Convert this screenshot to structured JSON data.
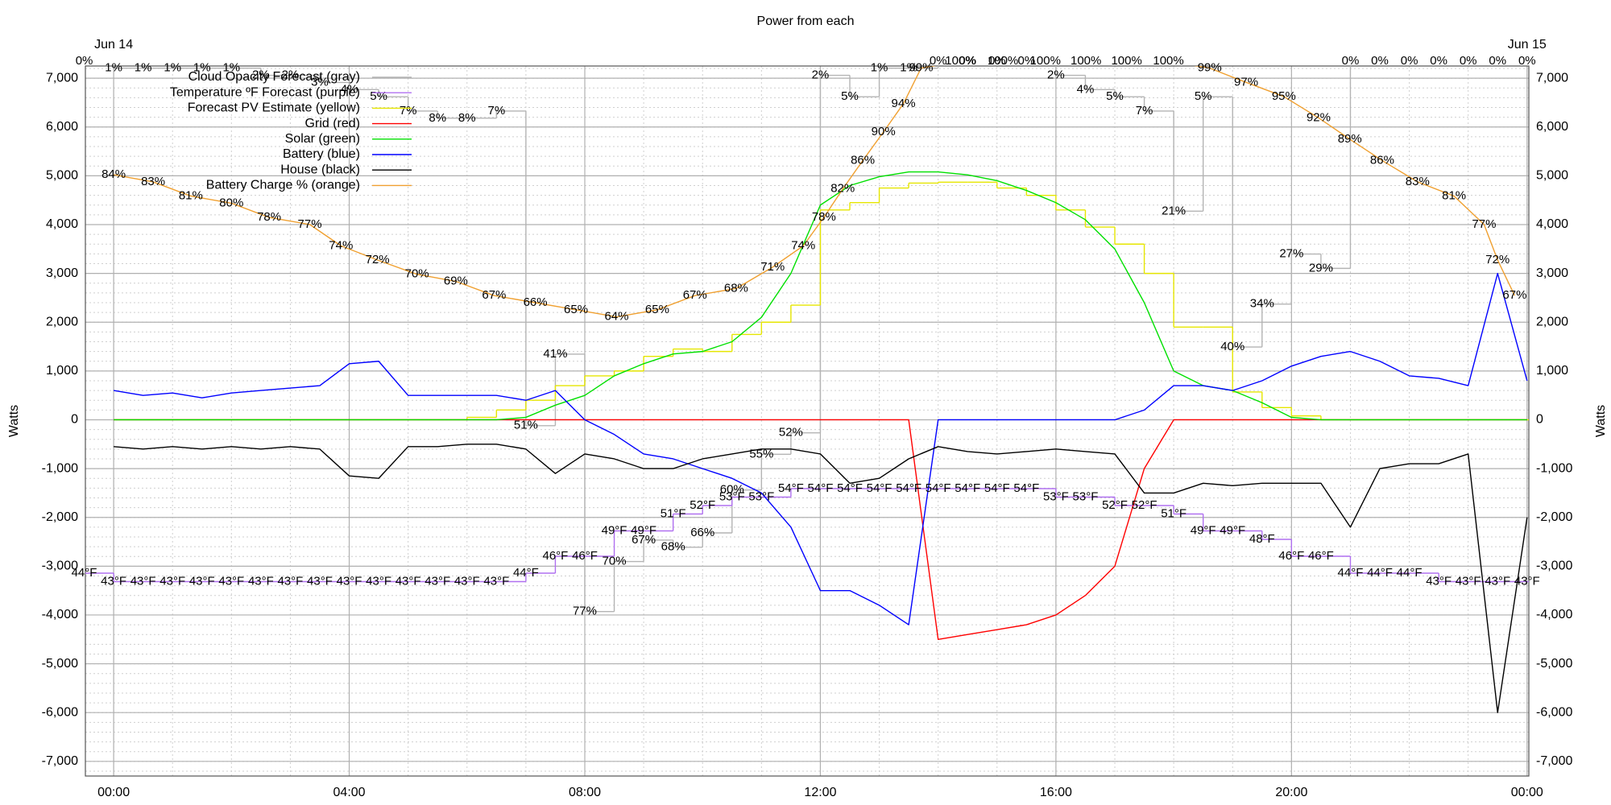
{
  "chart_data": {
    "type": "line",
    "title": "Power from each",
    "ylabel": "Watts",
    "xlim": [
      -0.48,
      24.03
    ],
    "ylim": [
      -7300,
      7250
    ],
    "y2lim": [
      -0.6,
      99.3
    ],
    "y3lim": [
      100,
      0.7
    ],
    "y4lim": [
      20,
      104
    ],
    "grid": true,
    "minor_grid": {
      "x_step": 1,
      "y_step": 200
    },
    "legend": "upper left",
    "xticks": [
      {
        "value": 0,
        "label": "00:00"
      },
      {
        "value": 4,
        "label": "04:00"
      },
      {
        "value": 8,
        "label": "08:00"
      },
      {
        "value": 12,
        "label": "12:00"
      },
      {
        "value": 16,
        "label": "16:00"
      },
      {
        "value": 20,
        "label": "20:00"
      },
      {
        "value": 24,
        "label": "00:00"
      }
    ],
    "date_labels": [
      {
        "value": 0,
        "label": "Jun 14"
      },
      {
        "value": 24,
        "label": "Jun 15"
      }
    ],
    "yticks": [
      {
        "value": -7000,
        "label": "-7,000"
      },
      {
        "value": -6000,
        "label": "-6,000"
      },
      {
        "value": -5000,
        "label": "-5,000"
      },
      {
        "value": -4000,
        "label": "-4,000"
      },
      {
        "value": -3000,
        "label": "-3,000"
      },
      {
        "value": -2000,
        "label": "-2,000"
      },
      {
        "value": -1000,
        "label": "-1,000"
      },
      0,
      {
        "value": 1000,
        "label": "1,000"
      },
      {
        "value": 2000,
        "label": "2,000"
      },
      {
        "value": 3000,
        "label": "3,000"
      },
      {
        "value": 4000,
        "label": "4,000"
      },
      {
        "value": 5000,
        "label": "5,000"
      },
      {
        "value": 6000,
        "label": "6,000"
      },
      {
        "value": 7000,
        "label": "7,000"
      }
    ],
    "x": [
      0,
      0.5,
      1,
      1.5,
      2,
      2.5,
      3,
      3.5,
      4,
      4.5,
      5,
      5.5,
      6,
      6.5,
      7,
      7.5,
      8,
      8.5,
      9,
      9.5,
      10,
      10.5,
      11,
      11.5,
      12,
      12.5,
      13,
      13.5,
      14,
      14.5,
      15,
      15.5,
      16,
      16.5,
      17,
      17.5,
      18,
      18.5,
      19,
      19.5,
      20,
      20.5,
      21,
      21.5,
      22,
      22.5,
      23,
      23.5,
      24
    ],
    "series": [
      {
        "name": "Cloud Opacity Forecast (gray)",
        "color": "#b4b4b4",
        "label_color": "#b4b4b4",
        "axis": "y3",
        "step": true,
        "x": [
          -0.5,
          0,
          0.5,
          1,
          1.5,
          2,
          2.5,
          3,
          3.5,
          4,
          4.5,
          5,
          5.5,
          6,
          6.5,
          7,
          7.5,
          8,
          8.5,
          9,
          9.5,
          10,
          10.5,
          11,
          11.5,
          12,
          12.5,
          13,
          13.5,
          14,
          14.5,
          15,
          15.5,
          16,
          16.5,
          17,
          17.5,
          18,
          18.5,
          19,
          19.5,
          20,
          20.5,
          21,
          21.5,
          22,
          22.5,
          23,
          23.5,
          24
        ],
        "values": [
          0,
          1,
          1,
          1,
          1,
          1,
          2,
          2,
          3,
          4,
          5,
          7,
          8,
          8,
          7,
          51,
          41,
          77,
          70,
          67,
          68,
          66,
          60,
          55,
          52,
          2,
          5,
          1,
          1,
          0,
          0,
          0,
          0,
          2,
          4,
          5,
          7,
          21,
          5,
          40,
          34,
          27,
          29,
          0,
          0,
          0,
          0,
          0,
          0,
          0
        ],
        "value_labels": [
          "0%",
          "1%",
          "1%",
          "1%",
          "1%",
          "1%",
          "2%",
          "2%",
          "3%",
          "4%",
          "5%",
          "7%",
          "8%",
          "8%",
          "7%",
          "51%",
          "41%",
          "77%",
          "70%",
          "67%",
          "68%",
          "66%",
          "60%",
          "55%",
          "52%",
          "2%",
          "5%",
          "1%",
          "1%",
          "0%",
          "0%",
          "0%",
          "0%",
          "2%",
          "4%",
          "5%",
          "7%",
          "21%",
          "5%",
          "40%",
          "34%",
          "27%",
          "29%",
          "0%",
          "0%",
          "0%",
          "0%",
          "0%",
          "0%",
          "0%"
        ]
      },
      {
        "name": "Temperature ºF Forecast (purple)",
        "color": "#b070f0",
        "label_color": "#c080ff",
        "axis": "y4",
        "step": true,
        "x": [
          -0.5,
          0,
          0.5,
          1,
          1.5,
          2,
          2.5,
          3,
          3.5,
          4,
          4.5,
          5,
          5.5,
          6,
          6.5,
          7,
          7.5,
          8,
          8.5,
          9,
          9.5,
          10,
          10.5,
          11,
          11.5,
          12,
          12.5,
          13,
          13.5,
          14,
          14.5,
          15,
          15.5,
          16,
          16.5,
          17,
          17.5,
          18,
          18.5,
          19,
          19.5,
          20,
          20.5,
          21,
          21.5,
          22,
          22.5,
          23,
          23.5,
          24
        ],
        "values": [
          44,
          43,
          43,
          43,
          43,
          43,
          43,
          43,
          43,
          43,
          43,
          43,
          43,
          43,
          43,
          44,
          46,
          46,
          49,
          49,
          51,
          52,
          53,
          53,
          54,
          54,
          54,
          54,
          54,
          54,
          54,
          54,
          54,
          53,
          53,
          52,
          52,
          51,
          49,
          49,
          48,
          46,
          46,
          44,
          44,
          44,
          43,
          43,
          43,
          43
        ],
        "value_labels": [
          "44°F",
          "43°F",
          "43°F",
          "43°F",
          "43°F",
          "43°F",
          "43°F",
          "43°F",
          "43°F",
          "43°F",
          "43°F",
          "43°F",
          "43°F",
          "43°F",
          "43°F",
          "44°F",
          "46°F",
          "46°F",
          "49°F",
          "49°F",
          "51°F",
          "52°F",
          "53°F",
          "53°F",
          "54°F",
          "54°F",
          "54°F",
          "54°F",
          "54°F",
          "54°F",
          "54°F",
          "54°F",
          "54°F",
          "53°F",
          "53°F",
          "52°F",
          "52°F",
          "51°F",
          "49°F",
          "49°F",
          "48°F",
          "46°F",
          "46°F",
          "44°F",
          "44°F",
          "44°F",
          "43°F",
          "43°F",
          "43°F",
          "43°F"
        ]
      },
      {
        "name": "Forecast PV Estimate (yellow)",
        "color": "#e6e600",
        "step": true,
        "values": [
          0,
          0,
          0,
          0,
          0,
          0,
          0,
          0,
          0,
          0,
          0,
          0,
          50,
          200,
          400,
          700,
          900,
          1000,
          1300,
          1450,
          1400,
          1750,
          2000,
          2350,
          4300,
          4450,
          4750,
          4850,
          4870,
          4870,
          4750,
          4600,
          4300,
          3950,
          3600,
          3000,
          1900,
          1900,
          570,
          250,
          80,
          0,
          0,
          0,
          0,
          0,
          0,
          0,
          0
        ]
      },
      {
        "name": "Grid (red)",
        "color": "#ff0000",
        "values": [
          0,
          0,
          0,
          0,
          0,
          0,
          0,
          0,
          0,
          0,
          0,
          0,
          0,
          0,
          0,
          0,
          0,
          0,
          0,
          0,
          0,
          0,
          0,
          0,
          0,
          0,
          0,
          0,
          -4500,
          -4400,
          -4300,
          -4200,
          -4000,
          -3600,
          -3000,
          -1000,
          0,
          0,
          0,
          0,
          0,
          0,
          0,
          0,
          0,
          0,
          0,
          0,
          0
        ]
      },
      {
        "name": "Solar (green)",
        "color": "#00e000",
        "values": [
          0,
          0,
          0,
          0,
          0,
          0,
          0,
          0,
          0,
          0,
          0,
          0,
          0,
          0,
          50,
          300,
          500,
          900,
          1150,
          1350,
          1400,
          1600,
          2100,
          3000,
          4400,
          4800,
          4980,
          5080,
          5080,
          5020,
          4900,
          4700,
          4450,
          4100,
          3500,
          2400,
          1000,
          700,
          600,
          350,
          50,
          0,
          0,
          0,
          0,
          0,
          0,
          0,
          0
        ]
      },
      {
        "name": "Battery (blue)",
        "color": "#0000ff",
        "values": [
          600,
          500,
          550,
          450,
          550,
          600,
          650,
          700,
          1150,
          1200,
          500,
          500,
          500,
          500,
          400,
          600,
          0,
          -300,
          -700,
          -800,
          -1000,
          -1200,
          -1500,
          -2200,
          -3500,
          -3500,
          -3800,
          -4200,
          0,
          0,
          0,
          0,
          0,
          0,
          0,
          200,
          700,
          700,
          600,
          800,
          1100,
          1300,
          1400,
          1200,
          900,
          850,
          700,
          3000,
          800
        ]
      },
      {
        "name": "House (black)",
        "color": "#000000",
        "values": [
          -550,
          -600,
          -550,
          -600,
          -550,
          -600,
          -550,
          -600,
          -1150,
          -1200,
          -550,
          -550,
          -500,
          -500,
          -600,
          -1100,
          -700,
          -800,
          -1000,
          -1000,
          -800,
          -700,
          -600,
          -600,
          -700,
          -1300,
          -1200,
          -800,
          -550,
          -650,
          -700,
          -650,
          -600,
          -650,
          -700,
          -1500,
          -1500,
          -1300,
          -1350,
          -1300,
          -1300,
          -1300,
          -2200,
          -1000,
          -900,
          -900,
          -700,
          -6000,
          -2000
        ]
      },
      {
        "name": "Battery Charge % (orange)",
        "color": "#f0a030",
        "label_color": "#8b4513",
        "axis": "y2",
        "x": [
          0,
          0.67,
          1.31,
          2.0,
          2.64,
          3.33,
          3.86,
          4.48,
          5.15,
          5.81,
          6.46,
          7.16,
          7.85,
          8.54,
          9.23,
          9.87,
          10.57,
          11.19,
          11.71,
          12.06,
          12.38,
          12.72,
          13.07,
          13.41,
          13.71,
          14.38,
          15.1,
          15.82,
          16.51,
          17.2,
          17.91,
          18.61,
          19.23,
          19.87,
          20.46,
          20.99,
          21.54,
          22.14,
          22.76,
          23.27,
          23.5,
          23.79
        ],
        "values": [
          84,
          83,
          81,
          80,
          78,
          77,
          74,
          72,
          70,
          69,
          67,
          66,
          65,
          64,
          65,
          67,
          68,
          71,
          74,
          78,
          82,
          86,
          90,
          94,
          99,
          100,
          100,
          100,
          100,
          100,
          100,
          99,
          97,
          95,
          92,
          89,
          86,
          83,
          81,
          77,
          72,
          67
        ],
        "value_labels": [
          "84%",
          "83%",
          "81%",
          "80%",
          "78%",
          "77%",
          "74%",
          "72%",
          "70%",
          "69%",
          "67%",
          "66%",
          "65%",
          "64%",
          "65%",
          "67%",
          "68%",
          "71%",
          "74%",
          "78%",
          "82%",
          "86%",
          "90%",
          "94%",
          "99%",
          "100%",
          "100%",
          "100%",
          "100%",
          "100%",
          "100%",
          "99%",
          "97%",
          "95%",
          "92%",
          "89%",
          "86%",
          "83%",
          "81%",
          "77%",
          "72%",
          "67%"
        ]
      }
    ]
  }
}
